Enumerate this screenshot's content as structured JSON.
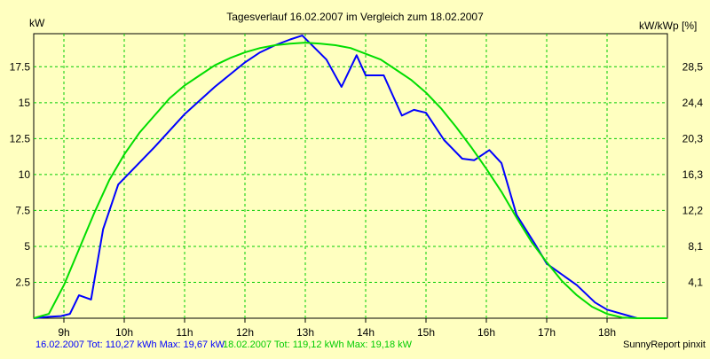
{
  "chart_data": {
    "type": "line",
    "title": "Tagesverlauf 16.02.2007 im Vergleich zum 18.02.2007",
    "ylabel_left": "kW",
    "ylabel_right": "kW/kWp [%]",
    "x_ticks": [
      "9h",
      "10h",
      "11h",
      "12h",
      "13h",
      "14h",
      "15h",
      "16h",
      "17h",
      "18h"
    ],
    "y_ticks_left": [
      "2.5",
      "5",
      "7.5",
      "10",
      "12.5",
      "15",
      "17.5"
    ],
    "y_ticks_right": [
      "4,1",
      "8,1",
      "12,2",
      "16,3",
      "20,3",
      "24,4",
      "28,5"
    ],
    "xlim": [
      8.5,
      19.0
    ],
    "ylim": [
      0,
      19.8
    ],
    "grid": true,
    "series": [
      {
        "name": "16.02.2007",
        "color": "#0000ff",
        "x": [
          8.5,
          8.75,
          8.95,
          9.1,
          9.25,
          9.45,
          9.65,
          9.9,
          10.5,
          11.0,
          11.5,
          12.0,
          12.25,
          12.5,
          12.75,
          12.95,
          13.35,
          13.6,
          13.85,
          14.0,
          14.3,
          14.6,
          14.8,
          15.0,
          15.3,
          15.6,
          15.8,
          16.05,
          16.25,
          16.5,
          16.8,
          17.0,
          17.5,
          17.8,
          18.0,
          18.5,
          18.75,
          19.0
        ],
        "values": [
          0.0,
          0.1,
          0.15,
          0.3,
          1.6,
          1.3,
          6.2,
          9.3,
          11.9,
          14.2,
          16.1,
          17.8,
          18.5,
          19.0,
          19.4,
          19.67,
          18.0,
          16.1,
          18.3,
          16.9,
          16.9,
          14.1,
          14.5,
          14.3,
          12.4,
          11.1,
          11.0,
          11.7,
          10.8,
          7.2,
          5.2,
          3.8,
          2.3,
          1.1,
          0.6,
          0.0,
          0.0,
          0.0
        ]
      },
      {
        "name": "18.02.2007",
        "color": "#00dd00",
        "x": [
          8.5,
          8.75,
          9.0,
          9.25,
          9.5,
          9.75,
          10.0,
          10.25,
          10.5,
          10.75,
          11.0,
          11.25,
          11.5,
          11.75,
          12.0,
          12.25,
          12.5,
          12.75,
          13.0,
          13.25,
          13.5,
          13.75,
          14.0,
          14.25,
          14.5,
          14.75,
          15.0,
          15.25,
          15.5,
          15.75,
          16.0,
          16.25,
          16.5,
          16.75,
          17.0,
          17.25,
          17.5,
          17.75,
          18.0,
          18.25,
          18.5,
          18.75,
          19.0
        ],
        "values": [
          0.0,
          0.3,
          2.3,
          4.8,
          7.3,
          9.6,
          11.4,
          12.9,
          14.1,
          15.3,
          16.2,
          16.9,
          17.6,
          18.1,
          18.5,
          18.8,
          19.0,
          19.1,
          19.18,
          19.1,
          19.0,
          18.8,
          18.4,
          18.0,
          17.3,
          16.6,
          15.7,
          14.6,
          13.3,
          11.9,
          10.4,
          8.8,
          7.0,
          5.3,
          3.9,
          2.6,
          1.6,
          0.8,
          0.3,
          0.05,
          0.0,
          0.0,
          0.0
        ]
      }
    ]
  },
  "footer": {
    "series1_stats": "16.02.2007 Tot: 110,27 kWh Max: 19,67 kW",
    "series2_stats": "18.02.2007 Tot: 119,12 kWh Max: 19,18 kW",
    "credit": "SunnyReport pinxit"
  },
  "colors": {
    "background": "#ffffc0",
    "grid": "#00cc00",
    "series1": "#0000ff",
    "series2": "#00dd00"
  }
}
